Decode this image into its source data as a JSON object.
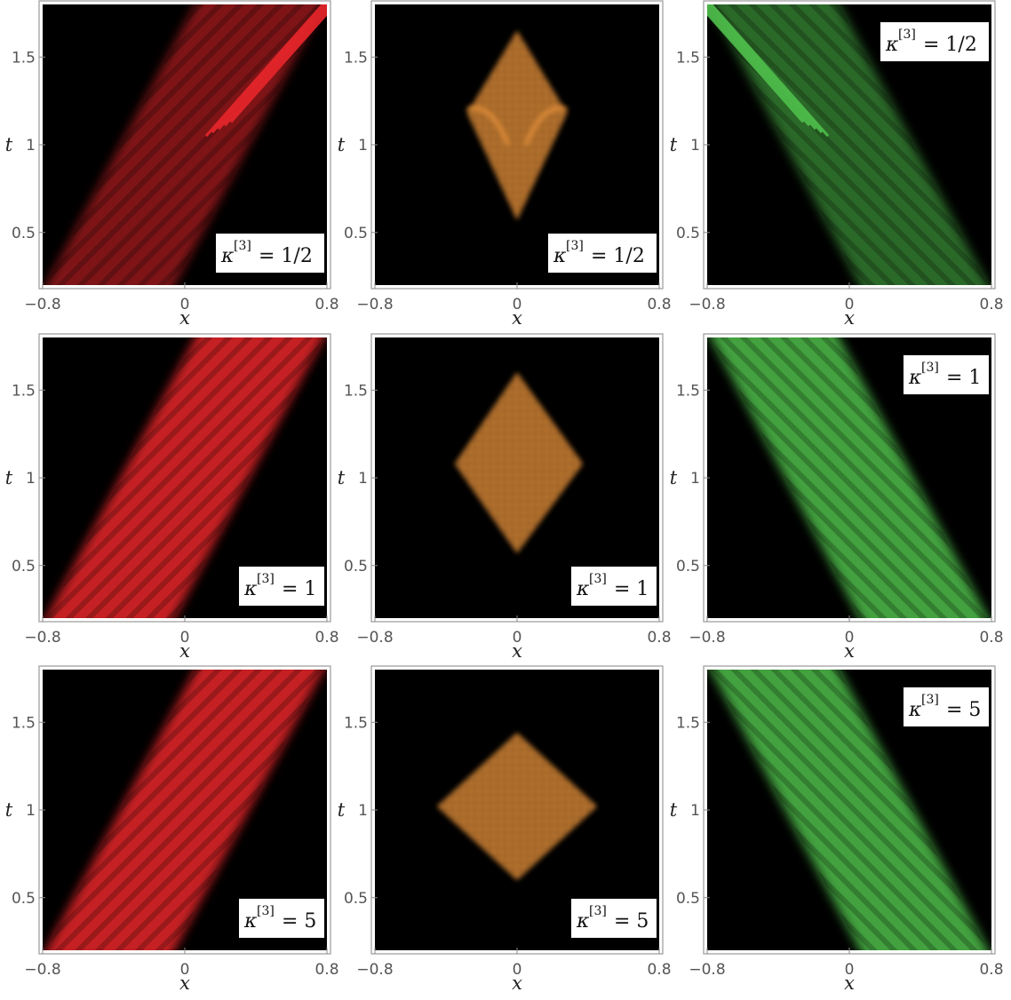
{
  "chart_data": {
    "type": "heatmap",
    "layout": "3x3 grid of density plots",
    "x_axis": {
      "label": "x",
      "range": [
        -0.8,
        0.8
      ],
      "ticks": [
        "−0.8",
        "0",
        "0.8"
      ]
    },
    "y_axis": {
      "label": "t",
      "range": [
        0.2,
        1.8
      ],
      "ticks": [
        "0.5",
        "1",
        "1.5"
      ]
    },
    "colors": {
      "red": "#e8262b",
      "orange": "#e9933a",
      "green": "#4fbf4c",
      "background": "#000000"
    },
    "panels": [
      {
        "row": 0,
        "col": 0,
        "color": "red",
        "shape": "right-moving beam",
        "kappa_label": "1/2",
        "label_corner": "bottom-right"
      },
      {
        "row": 0,
        "col": 1,
        "color": "orange",
        "shape": "diamond",
        "kappa_label": "1/2",
        "label_corner": "bottom-right"
      },
      {
        "row": 0,
        "col": 2,
        "color": "green",
        "shape": "left-moving beam",
        "kappa_label": "1/2",
        "label_corner": "top-right"
      },
      {
        "row": 1,
        "col": 0,
        "color": "red",
        "shape": "right-moving beam",
        "kappa_label": "1",
        "label_corner": "bottom-right"
      },
      {
        "row": 1,
        "col": 1,
        "color": "orange",
        "shape": "diamond",
        "kappa_label": "1",
        "label_corner": "bottom-right"
      },
      {
        "row": 1,
        "col": 2,
        "color": "green",
        "shape": "left-moving beam",
        "kappa_label": "1",
        "label_corner": "top-right"
      },
      {
        "row": 2,
        "col": 0,
        "color": "red",
        "shape": "right-moving beam",
        "kappa_label": "5",
        "label_corner": "bottom-right"
      },
      {
        "row": 2,
        "col": 1,
        "color": "orange",
        "shape": "diamond",
        "kappa_label": "5",
        "label_corner": "bottom-right"
      },
      {
        "row": 2,
        "col": 2,
        "color": "green",
        "shape": "left-moving beam",
        "kappa_label": "5",
        "label_corner": "top-right"
      }
    ],
    "diamond_extent": [
      {
        "kappa_label": "1/2",
        "t_range": [
          0.57,
          1.65
        ],
        "x_range": [
          -0.28,
          0.28
        ]
      },
      {
        "kappa_label": "1",
        "t_range": [
          0.57,
          1.6
        ],
        "x_range": [
          -0.35,
          0.37
        ]
      },
      {
        "kappa_label": "5",
        "t_range": [
          0.6,
          1.44
        ],
        "x_range": [
          -0.45,
          0.45
        ]
      }
    ]
  },
  "kappa": {
    "symbol": "κ",
    "superscript": "[3]",
    "equals": "="
  }
}
